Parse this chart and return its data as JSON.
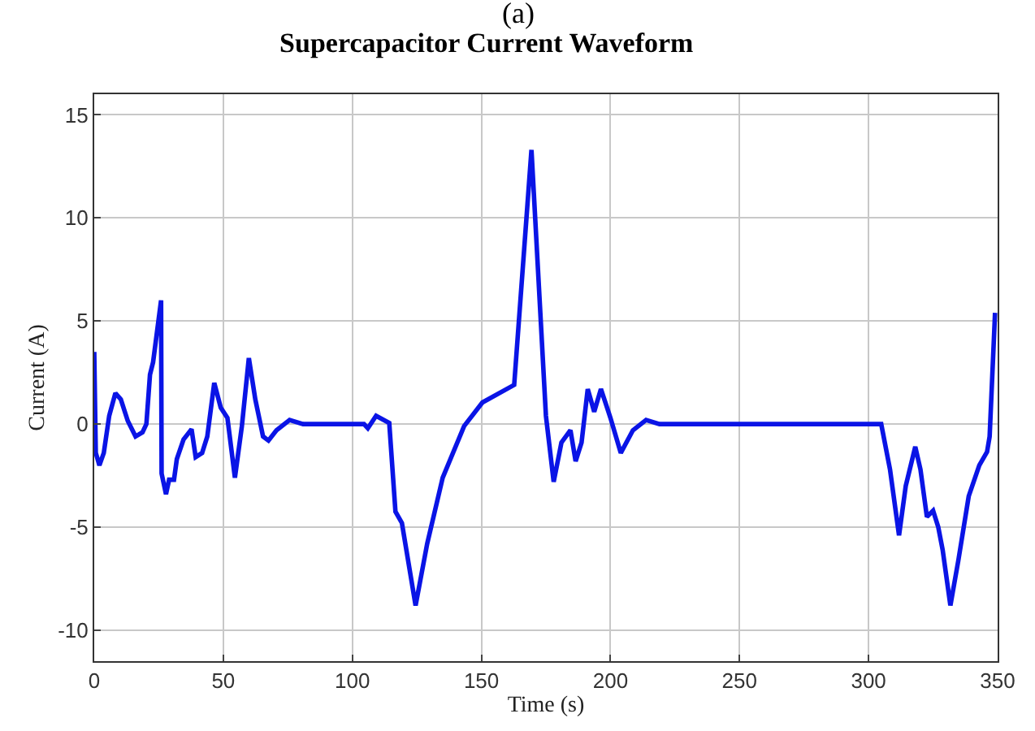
{
  "chart_data": {
    "type": "line",
    "title": "Supercapacitor Current Waveform",
    "xlabel": "Time (s)",
    "ylabel": "Current (A)",
    "annotations": [
      "(a)"
    ],
    "xlim": [
      0,
      350
    ],
    "xticks": [
      0,
      50,
      100,
      150,
      200,
      250,
      300,
      350
    ],
    "ylim": [
      -11.5,
      16
    ],
    "yticks": [
      -10,
      -5,
      0,
      5,
      10,
      15
    ],
    "grid": true,
    "line_style": "solid",
    "marker": "none",
    "series": [
      {
        "color": "#0a14e6",
        "x": [
          0,
          0.6,
          2,
          3.7,
          5.8,
          8.2,
          10.3,
          13,
          16,
          18.7,
          20.2,
          21.6,
          22.8,
          25.9,
          26.1,
          27.8,
          29,
          30.9,
          32,
          34.6,
          37.7,
          39.3,
          41.8,
          43.8,
          46.5,
          49,
          51.6,
          54.5,
          57.2,
          59.9,
          62.4,
          65.4,
          67.5,
          70.6,
          75.7,
          80.9,
          104.5,
          106,
          109.2,
          114.3,
          116.7,
          119.2,
          124.5,
          129,
          135,
          143.3,
          150.4,
          162.7,
          169.4,
          175,
          178,
          181,
          184.5,
          186.5,
          188.8,
          191.2,
          193.7,
          196.3,
          200,
          204,
          208.7,
          213.8,
          219,
          304.9,
          308.3,
          311.8,
          314.4,
          318.1,
          320.1,
          322.6,
          325,
          327,
          328.7,
          331.7,
          334.8,
          338.8,
          342.9,
          345.9,
          346.9,
          349
        ],
        "values": [
          3.5,
          -1.4,
          -2.0,
          -1.4,
          0.4,
          1.5,
          1.2,
          0.15,
          -0.6,
          -0.4,
          0,
          2.4,
          3.0,
          6.0,
          -2.4,
          -3.4,
          -2.7,
          -2.7,
          -1.7,
          -0.75,
          -0.25,
          -1.6,
          -1.4,
          -0.6,
          2.0,
          0.8,
          0.3,
          -2.6,
          -0.1,
          3.2,
          1.2,
          -0.6,
          -0.8,
          -0.3,
          0.2,
          0,
          0,
          -0.2,
          0.4,
          0.05,
          -4.25,
          -4.8,
          -8.8,
          -5.8,
          -2.6,
          -0.1,
          1.05,
          1.9,
          13.3,
          0.4,
          -2.8,
          -0.9,
          -0.3,
          -1.8,
          -0.9,
          1.7,
          0.6,
          1.7,
          0.3,
          -1.4,
          -0.3,
          0.2,
          0,
          0,
          -2.2,
          -5.4,
          -3.0,
          -1.1,
          -2.2,
          -4.5,
          -4.2,
          -5.0,
          -6.1,
          -8.8,
          -6.6,
          -3.5,
          -2.0,
          -1.35,
          -0.6,
          5.4
        ]
      }
    ]
  }
}
